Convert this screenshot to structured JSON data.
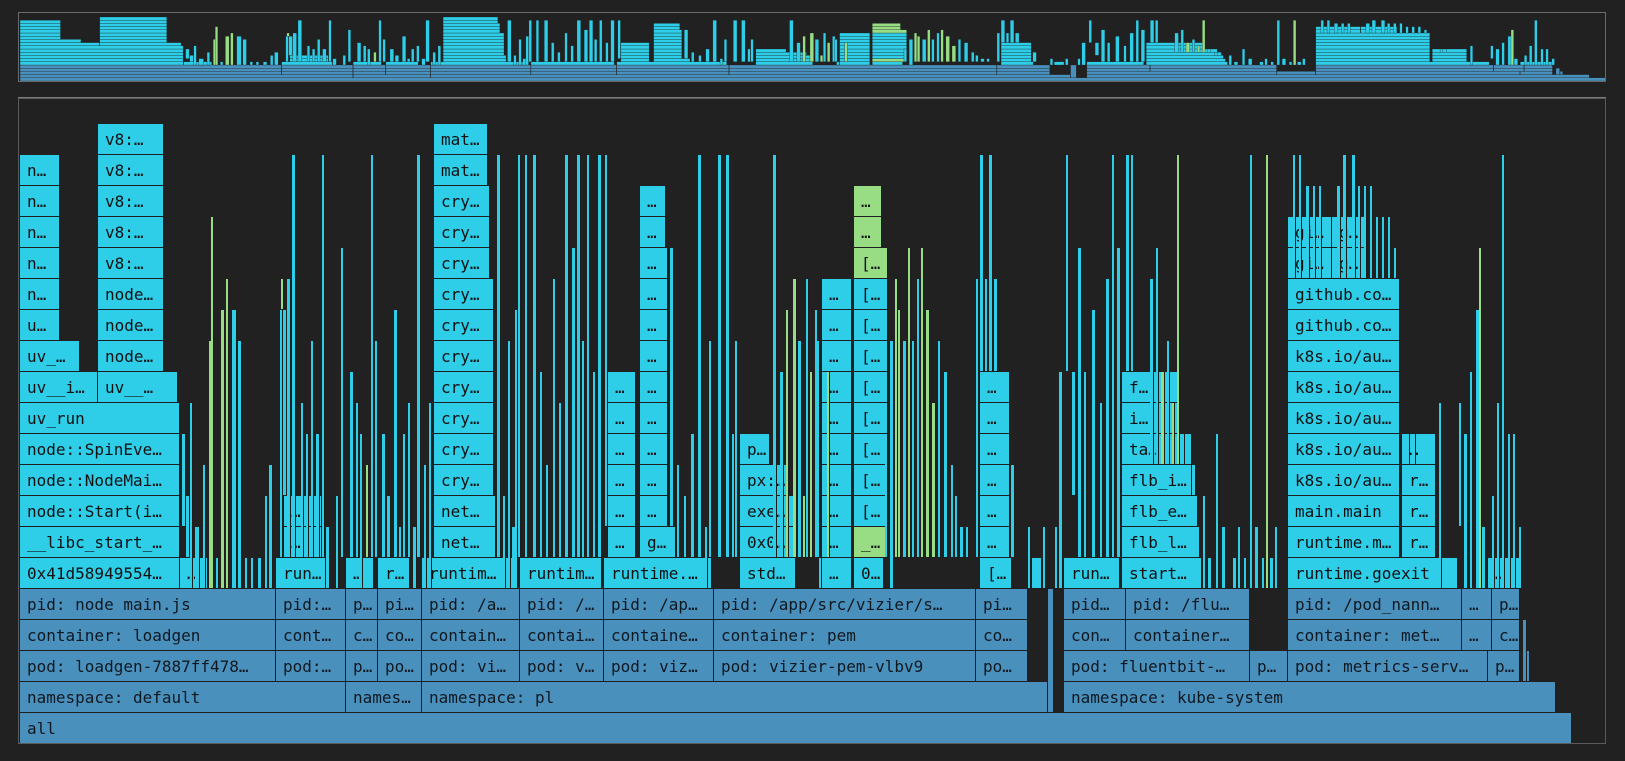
{
  "colors": {
    "kernel_blue": "#4a90bd",
    "user_cyan": "#2ecde8",
    "green": "#98dc84",
    "background": "#212121"
  },
  "frames": [
    {
      "label": "all"
    },
    {
      "label": "namespace: default"
    },
    {
      "label": "names…"
    },
    {
      "label": "namespace: pl"
    },
    {
      "label": "namespace: kube-system"
    },
    {
      "label": "pod: loadgen-7887ff478…"
    },
    {
      "label": "pod:…"
    },
    {
      "label": "p…"
    },
    {
      "label": "po…"
    },
    {
      "label": "pod: vi…"
    },
    {
      "label": "pod: v…"
    },
    {
      "label": "pod: viz…"
    },
    {
      "label": "pod: vizier-pem-vlbv9"
    },
    {
      "label": "po…"
    },
    {
      "label": "pod: fluentbit-…"
    },
    {
      "label": "p…"
    },
    {
      "label": "pod: metrics-serv…"
    },
    {
      "label": "p…"
    },
    {
      "label": "container: loadgen"
    },
    {
      "label": "cont…"
    },
    {
      "label": "c…"
    },
    {
      "label": "co…"
    },
    {
      "label": "contain…"
    },
    {
      "label": "contai…"
    },
    {
      "label": "containe…"
    },
    {
      "label": "container: pem"
    },
    {
      "label": "co…"
    },
    {
      "label": "con…"
    },
    {
      "label": "container…"
    },
    {
      "label": "container: met…"
    },
    {
      "label": "…"
    },
    {
      "label": "c…"
    },
    {
      "label": "pid: node main.js"
    },
    {
      "label": "pid:…"
    },
    {
      "label": "p…"
    },
    {
      "label": "pi…"
    },
    {
      "label": "pid: /a…"
    },
    {
      "label": "pid: /…"
    },
    {
      "label": "pid: /ap…"
    },
    {
      "label": "pid: /app/src/vizier/s…"
    },
    {
      "label": "pi…"
    },
    {
      "label": "pid…"
    },
    {
      "label": "pid: /flu…"
    },
    {
      "label": "pid: /pod_nann…"
    },
    {
      "label": "…"
    },
    {
      "label": "p…"
    },
    {
      "label": "0x41d58949554…"
    },
    {
      "label": "…"
    },
    {
      "label": "run…"
    },
    {
      "label": "…"
    },
    {
      "label": "r…"
    },
    {
      "label": "runtim…"
    },
    {
      "label": "runtim…"
    },
    {
      "label": "runtime.…"
    },
    {
      "label": "std…"
    },
    {
      "label": "…"
    },
    {
      "label": "0…"
    },
    {
      "label": "[…"
    },
    {
      "label": "run…"
    },
    {
      "label": "start…"
    },
    {
      "label": "runtime.goexit"
    },
    {
      "label": "…"
    },
    {
      "label": "__libc_start_…"
    },
    {
      "label": "…"
    },
    {
      "label": "net…"
    },
    {
      "label": "…"
    },
    {
      "label": "go…"
    },
    {
      "label": "0x0…"
    },
    {
      "label": "…"
    },
    {
      "label": "_…"
    },
    {
      "label": "…"
    },
    {
      "label": "flb_l…"
    },
    {
      "label": "runtime.m…"
    },
    {
      "label": "r…"
    },
    {
      "label": "node::Start(i…"
    },
    {
      "label": "…"
    },
    {
      "label": "net…"
    },
    {
      "label": "…"
    },
    {
      "label": "…"
    },
    {
      "label": "exe…"
    },
    {
      "label": "…"
    },
    {
      "label": "[…"
    },
    {
      "label": "…"
    },
    {
      "label": "flb_e…"
    },
    {
      "label": "main.main"
    },
    {
      "label": "r…"
    },
    {
      "label": "node::NodeMai…"
    },
    {
      "label": "cry…"
    },
    {
      "label": "…"
    },
    {
      "label": "…"
    },
    {
      "label": "px:…"
    },
    {
      "label": "…"
    },
    {
      "label": "[…"
    },
    {
      "label": "…"
    },
    {
      "label": "flb_i…"
    },
    {
      "label": "k8s.io/au…"
    },
    {
      "label": "r…"
    },
    {
      "label": "node::SpinEve…"
    },
    {
      "label": "cry…"
    },
    {
      "label": "…"
    },
    {
      "label": "…"
    },
    {
      "label": "p…"
    },
    {
      "label": "…"
    },
    {
      "label": "[…"
    },
    {
      "label": "…"
    },
    {
      "label": "ta…"
    },
    {
      "label": "k8s.io/au…"
    },
    {
      "label": "…"
    },
    {
      "label": "uv_run"
    },
    {
      "label": "cry…"
    },
    {
      "label": "…"
    },
    {
      "label": "…"
    },
    {
      "label": "…"
    },
    {
      "label": "[…"
    },
    {
      "label": "…"
    },
    {
      "label": "i…"
    },
    {
      "label": "k8s.io/au…"
    },
    {
      "label": "uv__i…"
    },
    {
      "label": "uv__…"
    },
    {
      "label": "cry…"
    },
    {
      "label": "…"
    },
    {
      "label": "…"
    },
    {
      "label": "…"
    },
    {
      "label": "[…"
    },
    {
      "label": "…"
    },
    {
      "label": "f…"
    },
    {
      "label": "k8s.io/au…"
    },
    {
      "label": "uv_…"
    },
    {
      "label": "node…"
    },
    {
      "label": "cry…"
    },
    {
      "label": "…"
    },
    {
      "label": "…"
    },
    {
      "label": "[…"
    },
    {
      "label": "k8s.io/au…"
    },
    {
      "label": "u…"
    },
    {
      "label": "node…"
    },
    {
      "label": "cry…"
    },
    {
      "label": "…"
    },
    {
      "label": "…"
    },
    {
      "label": "[…"
    },
    {
      "label": "github.co…"
    },
    {
      "label": "n…"
    },
    {
      "label": "node…"
    },
    {
      "label": "cry…"
    },
    {
      "label": "…"
    },
    {
      "label": "…"
    },
    {
      "label": "[…"
    },
    {
      "label": "github.co…"
    },
    {
      "label": "n…"
    },
    {
      "label": "v8:…"
    },
    {
      "label": "cry…"
    },
    {
      "label": "…"
    },
    {
      "label": "[…"
    },
    {
      "label": "gi…"
    },
    {
      "label": "g…"
    },
    {
      "label": "n…"
    },
    {
      "label": "v8:…"
    },
    {
      "label": "cry…"
    },
    {
      "label": "…"
    },
    {
      "label": "…"
    },
    {
      "label": "gi…"
    },
    {
      "label": "g…"
    },
    {
      "label": "n…"
    },
    {
      "label": "v8:…"
    },
    {
      "label": "cry…"
    },
    {
      "label": "…"
    },
    {
      "label": "…"
    },
    {
      "label": "n…"
    },
    {
      "label": "v8:…"
    },
    {
      "label": "mat…"
    },
    {
      "label": "v8:…"
    },
    {
      "label": "mat…"
    }
  ]
}
